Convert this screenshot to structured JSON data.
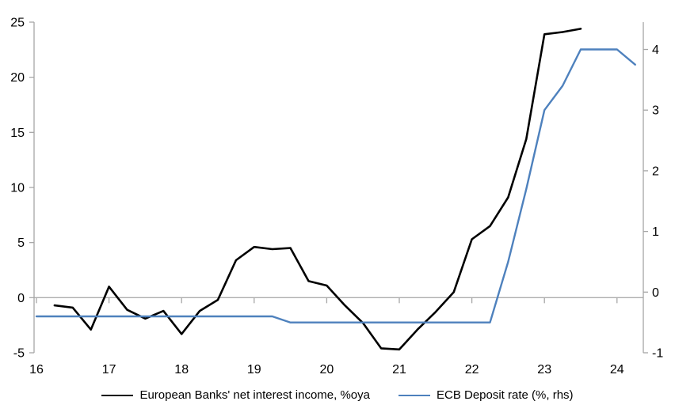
{
  "chart_data": {
    "type": "line",
    "title": "",
    "legend_position": "bottom",
    "grid": "zero-line-only",
    "x_axis": {
      "labels": [
        "16",
        "17",
        "18",
        "19",
        "20",
        "21",
        "22",
        "23",
        "24"
      ],
      "range": [
        16,
        24.4
      ]
    },
    "left_axis": {
      "tick_labels": [
        "25",
        "20",
        "15",
        "10",
        "5",
        "0",
        "-5"
      ],
      "tick_values": [
        25,
        20,
        15,
        10,
        5,
        0,
        -5
      ],
      "range": [
        -5,
        25
      ]
    },
    "right_axis": {
      "tick_labels": [
        "4",
        "3",
        "2",
        "1",
        "0",
        "-1"
      ],
      "tick_values": [
        4,
        3,
        2,
        1,
        0,
        -1
      ],
      "range": [
        -1,
        4.45
      ]
    },
    "series": [
      {
        "name": "European Banks' net interest income, %oya",
        "color": "#000000",
        "axis": "left",
        "x": [
          16.25,
          16.5,
          16.75,
          17.0,
          17.25,
          17.5,
          17.75,
          18.0,
          18.25,
          18.5,
          18.75,
          19.0,
          19.25,
          19.5,
          19.75,
          20.0,
          20.25,
          20.5,
          20.75,
          21.0,
          21.25,
          21.5,
          21.75,
          22.0,
          22.25,
          22.5,
          22.75,
          23.0,
          23.25,
          23.5
        ],
        "values": [
          -0.7,
          -0.9,
          -2.9,
          1.0,
          -1.1,
          -1.9,
          -1.2,
          -3.3,
          -1.2,
          -0.2,
          3.4,
          4.6,
          4.4,
          4.5,
          1.5,
          1.1,
          -0.7,
          -2.3,
          -4.6,
          -4.7,
          -2.9,
          -1.3,
          0.5,
          5.3,
          6.5,
          9.1,
          14.4,
          23.9,
          24.1,
          24.4
        ]
      },
      {
        "name": "ECB Deposit rate (%, rhs)",
        "color": "#4E81BD",
        "axis": "right",
        "x": [
          16.0,
          16.25,
          16.5,
          16.75,
          17.0,
          17.25,
          17.5,
          17.75,
          18.0,
          18.25,
          18.5,
          18.75,
          19.0,
          19.25,
          19.5,
          19.75,
          20.0,
          20.25,
          20.5,
          20.75,
          21.0,
          21.25,
          21.5,
          21.75,
          22.0,
          22.25,
          22.5,
          22.75,
          23.0,
          23.25,
          23.5,
          23.75,
          24.0,
          24.25
        ],
        "values": [
          -0.4,
          -0.4,
          -0.4,
          -0.4,
          -0.4,
          -0.4,
          -0.4,
          -0.4,
          -0.4,
          -0.4,
          -0.4,
          -0.4,
          -0.4,
          -0.4,
          -0.5,
          -0.5,
          -0.5,
          -0.5,
          -0.5,
          -0.5,
          -0.5,
          -0.5,
          -0.5,
          -0.5,
          -0.5,
          -0.5,
          0.5,
          1.7,
          3.0,
          3.4,
          4.0,
          4.0,
          4.0,
          3.75
        ]
      }
    ]
  },
  "colors": {
    "axis": "#A6A6A6",
    "zero_gridline": "#ADADAD",
    "text": "#000000",
    "background": "#FFFFFF"
  }
}
